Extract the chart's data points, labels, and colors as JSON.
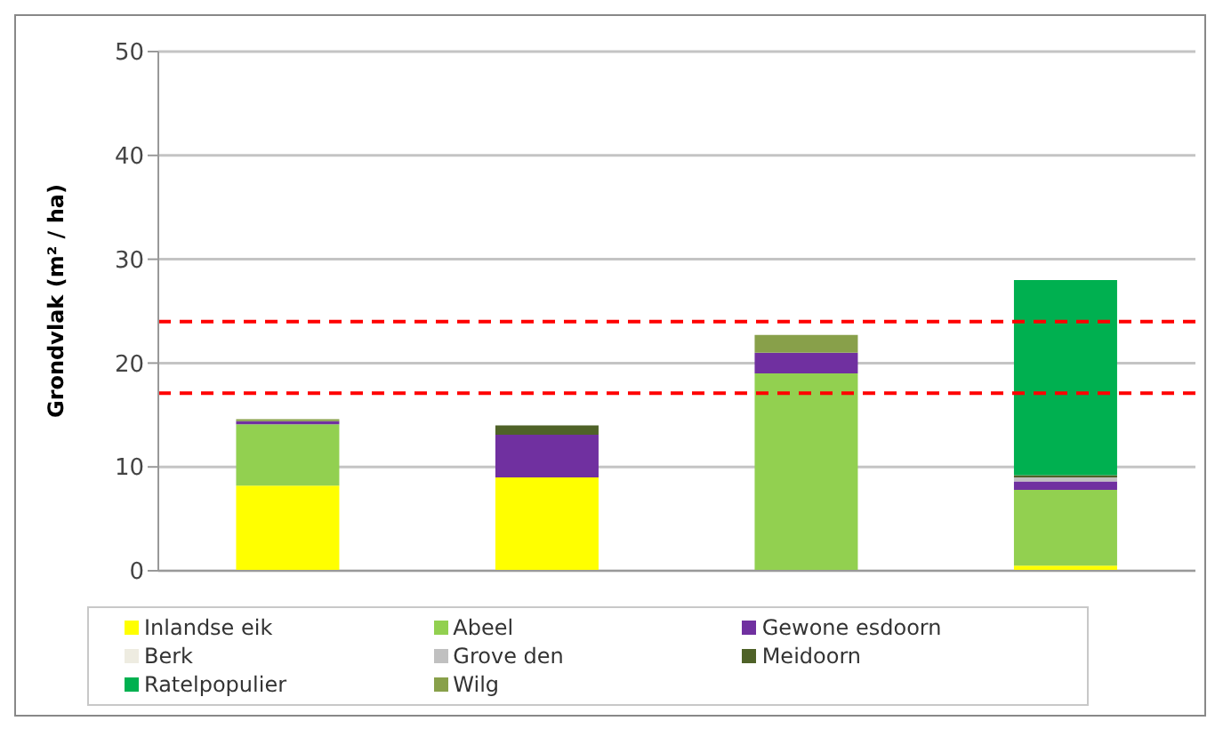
{
  "chart_data": {
    "type": "bar",
    "stacked": true,
    "ylabel": "Grondvlak (m² / ha)",
    "categories": [
      null,
      null,
      null,
      null
    ],
    "series": [
      {
        "name": "Inlandse eik",
        "color": "#ffff00",
        "values": [
          8.2,
          9.0,
          0,
          0.5
        ]
      },
      {
        "name": "Abeel",
        "color": "#92d050",
        "values": [
          5.9,
          0,
          19.0,
          7.3
        ]
      },
      {
        "name": "Gewone esdoorn",
        "color": "#7030a0",
        "values": [
          0.3,
          4.1,
          2.0,
          0.8
        ]
      },
      {
        "name": "Berk",
        "color": "#eeece1",
        "values": [
          0,
          0,
          0,
          0
        ]
      },
      {
        "name": "Grove den",
        "color": "#c0c0c0",
        "values": [
          0,
          0,
          0,
          0.4
        ]
      },
      {
        "name": "Meidoorn",
        "color": "#4f6228",
        "values": [
          0,
          0.9,
          0,
          0.2
        ]
      },
      {
        "name": "Ratelpopulier",
        "color": "#00b050",
        "values": [
          0,
          0,
          0,
          18.8
        ]
      },
      {
        "name": "Wilg",
        "color": "#88a04a",
        "values": [
          0.2,
          0,
          1.7,
          0
        ]
      }
    ],
    "ylim": [
      0,
      50
    ],
    "yticks": [
      0,
      10,
      20,
      30,
      40,
      50
    ],
    "grid": "y",
    "tick_labels": "y",
    "legend": "bottom",
    "ref_lines": [
      {
        "axis": "y",
        "value": 24,
        "color": "#ff0000",
        "line_style": "dashed"
      },
      {
        "axis": "y",
        "value": 17.1,
        "color": "#ff0000",
        "line_style": "dashed"
      }
    ]
  }
}
